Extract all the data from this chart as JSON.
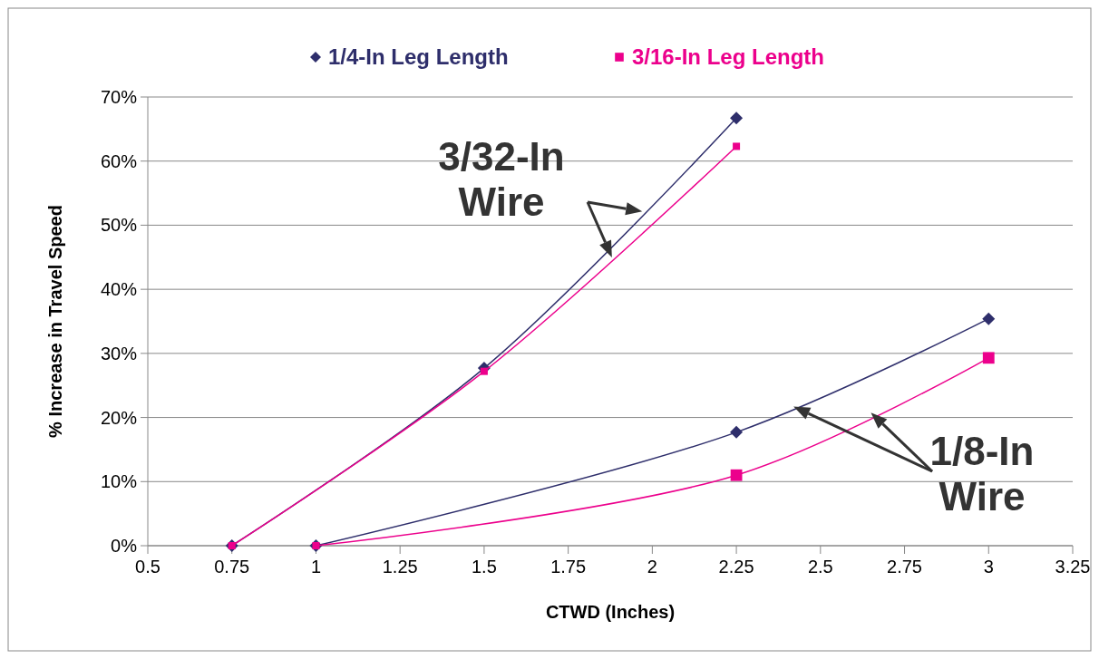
{
  "chart_data": {
    "type": "line",
    "xlabel": "CTWD (Inches)",
    "ylabel": "% Increase in Travel Speed",
    "xlim": [
      0.5,
      3.25
    ],
    "xticks": [
      0.5,
      0.75,
      1,
      1.25,
      1.5,
      1.75,
      2,
      2.25,
      2.5,
      2.75,
      3,
      3.25
    ],
    "ylim": [
      0,
      70
    ],
    "yticks": [
      {
        "value": 0,
        "label": "0%"
      },
      {
        "value": 10,
        "label": "10%"
      },
      {
        "value": 20,
        "label": "20%"
      },
      {
        "value": 30,
        "label": "30%"
      },
      {
        "value": 40,
        "label": "40%"
      },
      {
        "value": 50,
        "label": "50%"
      },
      {
        "value": 60,
        "label": "60%"
      },
      {
        "value": 70,
        "label": "70%"
      }
    ],
    "grid": "y",
    "legend": "top",
    "series": [
      {
        "name": "1/4-In Leg Length",
        "color": "#2e2e6b",
        "marker": "diamond",
        "x": [
          0.75,
          1.5,
          2.25
        ],
        "values": [
          0,
          27.7,
          66.7
        ]
      },
      {
        "name": "3/16-In Leg Length",
        "color": "#ec008c",
        "marker": "square",
        "x": [
          0.75,
          1.5,
          2.25
        ],
        "values": [
          0,
          27.2,
          62.3
        ]
      },
      {
        "color": "#2e2e6b",
        "marker": "diamond",
        "x": [
          1,
          2.25,
          3
        ],
        "values": [
          0,
          17.7,
          35.4
        ]
      },
      {
        "color": "#ec008c",
        "marker": "square",
        "x": [
          1,
          2.25,
          3
        ],
        "values": [
          0,
          11,
          29.3
        ]
      }
    ],
    "annotations": [
      "3/32-In Wire",
      "1/8-In Wire"
    ]
  }
}
